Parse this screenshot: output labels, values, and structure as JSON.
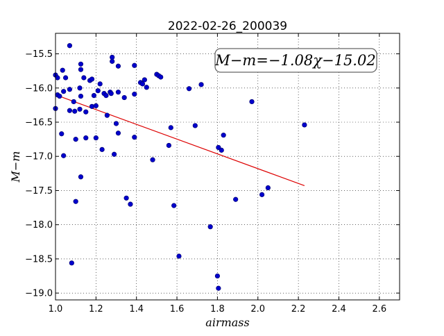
{
  "chart_data": {
    "type": "scatter",
    "title": "2022-02-26_200039",
    "xlabel": "airmass",
    "ylabel": "M−m",
    "xlim": [
      1.0,
      2.7
    ],
    "ylim": [
      -19.1,
      -15.2
    ],
    "xticks": [
      1.0,
      1.2,
      1.4,
      1.6,
      1.8,
      2.0,
      2.2,
      2.4,
      2.6
    ],
    "xtick_labels": [
      "1.0",
      "1.2",
      "1.4",
      "1.6",
      "1.8",
      "2.0",
      "2.2",
      "2.4",
      "2.6"
    ],
    "yticks": [
      -15.5,
      -16.0,
      -16.5,
      -17.0,
      -17.5,
      -18.0,
      -18.5,
      -19.0
    ],
    "ytick_labels": [
      "−15.5",
      "−16.0",
      "−16.5",
      "−17.0",
      "−17.5",
      "−18.0",
      "−18.5",
      "−19.0"
    ],
    "grid": true,
    "annotation": "M−m=−1.08χ−15.02",
    "point_color": "#0000cc",
    "fit_color": "#dd0000",
    "fit": {
      "slope": -1.08,
      "intercept": -15.02,
      "x_range": [
        1.02,
        2.23
      ]
    },
    "points": [
      [
        1.0,
        -15.81
      ],
      [
        1.0,
        -16.3
      ],
      [
        1.01,
        -15.85
      ],
      [
        1.01,
        -16.1
      ],
      [
        1.02,
        -16.12
      ],
      [
        1.03,
        -16.67
      ],
      [
        1.035,
        -15.74
      ],
      [
        1.04,
        -16.05
      ],
      [
        1.04,
        -16.99
      ],
      [
        1.05,
        -15.85
      ],
      [
        1.07,
        -15.38
      ],
      [
        1.07,
        -16.02
      ],
      [
        1.07,
        -16.33
      ],
      [
        1.08,
        -18.56
      ],
      [
        1.09,
        -16.2
      ],
      [
        1.095,
        -16.34
      ],
      [
        1.1,
        -16.75
      ],
      [
        1.1,
        -17.66
      ],
      [
        1.12,
        -16.0
      ],
      [
        1.12,
        -16.31
      ],
      [
        1.125,
        -15.65
      ],
      [
        1.125,
        -15.73
      ],
      [
        1.125,
        -16.12
      ],
      [
        1.125,
        -17.3
      ],
      [
        1.14,
        -15.85
      ],
      [
        1.15,
        -16.73
      ],
      [
        1.15,
        -16.35
      ],
      [
        1.17,
        -15.89
      ],
      [
        1.18,
        -15.87
      ],
      [
        1.18,
        -16.27
      ],
      [
        1.19,
        -16.11
      ],
      [
        1.2,
        -16.26
      ],
      [
        1.2,
        -16.73
      ],
      [
        1.21,
        -16.04
      ],
      [
        1.22,
        -15.94
      ],
      [
        1.23,
        -16.9
      ],
      [
        1.24,
        -16.08
      ],
      [
        1.25,
        -16.11
      ],
      [
        1.255,
        -16.4
      ],
      [
        1.27,
        -16.06
      ],
      [
        1.275,
        -16.08
      ],
      [
        1.28,
        -15.55
      ],
      [
        1.28,
        -15.61
      ],
      [
        1.29,
        -16.97
      ],
      [
        1.3,
        -16.52
      ],
      [
        1.31,
        -16.66
      ],
      [
        1.31,
        -16.06
      ],
      [
        1.31,
        -15.68
      ],
      [
        1.34,
        -16.14
      ],
      [
        1.35,
        -17.61
      ],
      [
        1.37,
        -17.7
      ],
      [
        1.39,
        -15.67
      ],
      [
        1.39,
        -16.09
      ],
      [
        1.39,
        -16.72
      ],
      [
        1.42,
        -15.92
      ],
      [
        1.43,
        -15.94
      ],
      [
        1.44,
        -15.88
      ],
      [
        1.45,
        -15.99
      ],
      [
        1.48,
        -17.05
      ],
      [
        1.5,
        -15.8
      ],
      [
        1.51,
        -15.82
      ],
      [
        1.52,
        -15.84
      ],
      [
        1.56,
        -16.84
      ],
      [
        1.57,
        -16.58
      ],
      [
        1.585,
        -17.72
      ],
      [
        1.61,
        -18.46
      ],
      [
        1.66,
        -16.01
      ],
      [
        1.69,
        -16.55
      ],
      [
        1.72,
        -15.95
      ],
      [
        1.765,
        -18.03
      ],
      [
        1.8,
        -18.75
      ],
      [
        1.805,
        -18.93
      ],
      [
        1.805,
        -16.87
      ],
      [
        1.82,
        -16.91
      ],
      [
        1.83,
        -16.69
      ],
      [
        1.89,
        -17.63
      ],
      [
        1.97,
        -16.2
      ],
      [
        2.02,
        -17.56
      ],
      [
        2.05,
        -17.46
      ],
      [
        2.23,
        -16.54
      ]
    ]
  }
}
